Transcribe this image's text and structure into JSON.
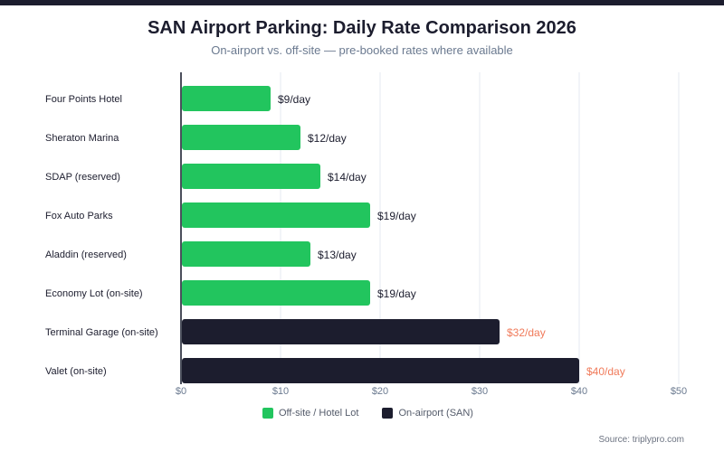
{
  "header": {
    "title": "SAN Airport Parking: Daily Rate Comparison 2026",
    "subtitle": "On-airport vs. off-site — pre-booked rates where available"
  },
  "colors": {
    "offsite": "#22c55e",
    "onairport": "#1c1d2e",
    "onairport_label": "#f07a5a",
    "offsite_label": "#1c1d2e",
    "grid": "#eef1f5",
    "axis": "#4b4f5c",
    "tick": "#6b7a90"
  },
  "legend": [
    {
      "label": "Off-site / Hotel Lot",
      "series": "offsite"
    },
    {
      "label": "On-airport (SAN)",
      "series": "onairport"
    }
  ],
  "source": "Source: triplypro.com",
  "chart_data": {
    "type": "bar",
    "orientation": "horizontal",
    "title": "SAN Airport Parking: Daily Rate Comparison 2026",
    "subtitle": "On-airport vs. off-site — pre-booked rates where available",
    "xlabel": "",
    "ylabel": "",
    "xlim": [
      0,
      50
    ],
    "xticks": [
      0,
      10,
      20,
      30,
      40,
      50
    ],
    "xtick_labels": [
      "$0",
      "$10",
      "$20",
      "$30",
      "$40",
      "$50"
    ],
    "grid": "vertical",
    "legend_position": "bottom-center",
    "categories": [
      "Four Points Hotel",
      "Sheraton Marina",
      "SDAP (reserved)",
      "Fox Auto Parks",
      "Aladdin (reserved)",
      "Economy Lot (on-site)",
      "Terminal Garage (on-site)",
      "Valet (on-site)"
    ],
    "values": [
      9,
      12,
      14,
      19,
      13,
      19,
      32,
      40
    ],
    "series_of": [
      "offsite",
      "offsite",
      "offsite",
      "offsite",
      "offsite",
      "offsite",
      "onairport",
      "onairport"
    ],
    "data_labels": [
      "$9/day",
      "$12/day",
      "$14/day",
      "$19/day",
      "$13/day",
      "$19/day",
      "$32/day",
      "$40/day"
    ],
    "series": [
      {
        "name": "Off-site / Hotel Lot",
        "key": "offsite"
      },
      {
        "name": "On-airport (SAN)",
        "key": "onairport"
      }
    ]
  }
}
